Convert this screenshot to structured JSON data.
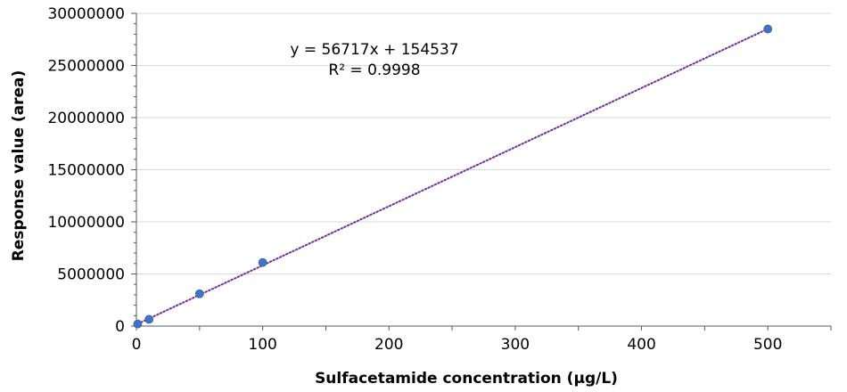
{
  "chart_data": {
    "type": "scatter",
    "xlabel": "Sulfacetamide concentration (µg/L)",
    "ylabel": "Response value (area)",
    "xlim": [
      0,
      550
    ],
    "ylim": [
      0,
      30000000
    ],
    "x_ticks": [
      0,
      100,
      200,
      300,
      400,
      500
    ],
    "y_ticks": [
      0,
      5000000,
      10000000,
      15000000,
      20000000,
      25000000,
      30000000
    ],
    "grid": "horizontal",
    "series": [
      {
        "x": [
          1,
          10,
          50,
          100,
          500
        ],
        "y": [
          200000,
          650000,
          3100000,
          6100000,
          28500000
        ],
        "marker_color": "#4472C4"
      }
    ],
    "trendline": {
      "type": "linear",
      "slope": 56717,
      "intercept": 154537,
      "color": "#7030A0",
      "style": "dotted",
      "equation": "y = 56717x + 154537",
      "r_squared": "R² = 0.9998"
    }
  }
}
